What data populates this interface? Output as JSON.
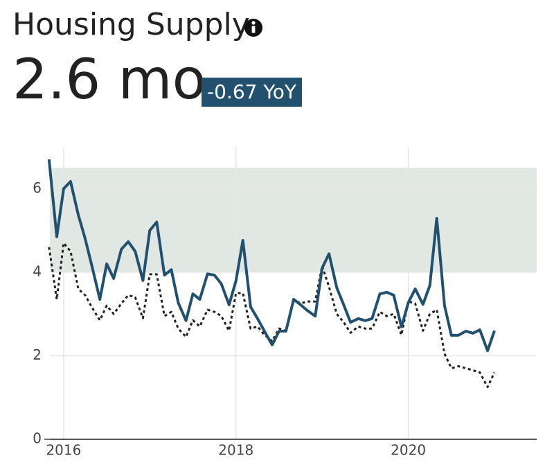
{
  "chart_data": {
    "type": "line",
    "title": "Housing Supply",
    "headline": "2.6 mo",
    "badge": "-0.67 YoY",
    "x": [
      2015.83,
      2015.92,
      2016.0,
      2016.08,
      2016.17,
      2016.25,
      2016.33,
      2016.42,
      2016.5,
      2016.58,
      2016.67,
      2016.75,
      2016.83,
      2016.92,
      2017.0,
      2017.08,
      2017.17,
      2017.25,
      2017.33,
      2017.42,
      2017.5,
      2017.58,
      2017.67,
      2017.75,
      2017.83,
      2017.92,
      2018.0,
      2018.08,
      2018.17,
      2018.25,
      2018.33,
      2018.42,
      2018.5,
      2018.58,
      2018.67,
      2018.75,
      2018.83,
      2018.92,
      2019.0,
      2019.08,
      2019.17,
      2019.25,
      2019.33,
      2019.42,
      2019.5,
      2019.58,
      2019.67,
      2019.75,
      2019.83,
      2019.92,
      2020.0,
      2020.08,
      2020.17,
      2020.25,
      2020.33,
      2020.42,
      2020.5,
      2020.58,
      2020.67,
      2020.75,
      2020.83,
      2020.92,
      2021.0
    ],
    "series": [
      {
        "color": "#22506f",
        "style": "solid",
        "values": [
          6.7,
          4.85,
          6.0,
          6.17,
          5.37,
          4.8,
          4.13,
          3.35,
          4.2,
          3.85,
          4.55,
          4.73,
          4.5,
          3.8,
          5.0,
          5.2,
          3.93,
          4.06,
          3.27,
          2.84,
          3.48,
          3.35,
          3.96,
          3.93,
          3.72,
          3.22,
          3.8,
          4.76,
          3.17,
          2.89,
          2.59,
          2.26,
          2.59,
          2.59,
          3.35,
          3.22,
          3.08,
          2.95,
          4.1,
          4.44,
          3.63,
          3.22,
          2.8,
          2.89,
          2.84,
          2.89,
          3.48,
          3.52,
          3.45,
          2.69,
          3.27,
          3.6,
          3.23,
          3.68,
          5.29,
          3.2,
          2.49,
          2.49,
          2.59,
          2.54,
          2.62,
          2.12,
          2.6
        ]
      },
      {
        "color": "#222222",
        "style": "dotted",
        "values": [
          4.6,
          3.35,
          4.7,
          4.5,
          3.6,
          3.45,
          3.15,
          2.85,
          3.2,
          3.0,
          3.25,
          3.45,
          3.4,
          2.9,
          3.95,
          3.95,
          2.95,
          3.05,
          2.65,
          2.45,
          2.85,
          2.7,
          3.1,
          3.05,
          2.95,
          2.6,
          3.5,
          3.5,
          2.65,
          2.7,
          2.5,
          2.35,
          2.65,
          2.6,
          3.35,
          3.25,
          3.3,
          3.3,
          4.15,
          3.65,
          3.0,
          2.8,
          2.55,
          2.7,
          2.65,
          2.65,
          3.05,
          2.95,
          3.0,
          2.5,
          3.3,
          3.25,
          2.6,
          3.0,
          3.1,
          2.05,
          1.7,
          1.75,
          1.7,
          1.65,
          1.6,
          1.25,
          1.6
        ]
      }
    ],
    "band": [
      4,
      6.5
    ],
    "band_color": "#e1e8e4",
    "xlim": [
      2015.84,
      2021.49
    ],
    "ylim": [
      0,
      7
    ],
    "xticks": [
      2016,
      2018,
      2020
    ],
    "yticks": [
      0,
      2,
      4,
      6
    ],
    "grid": true
  }
}
